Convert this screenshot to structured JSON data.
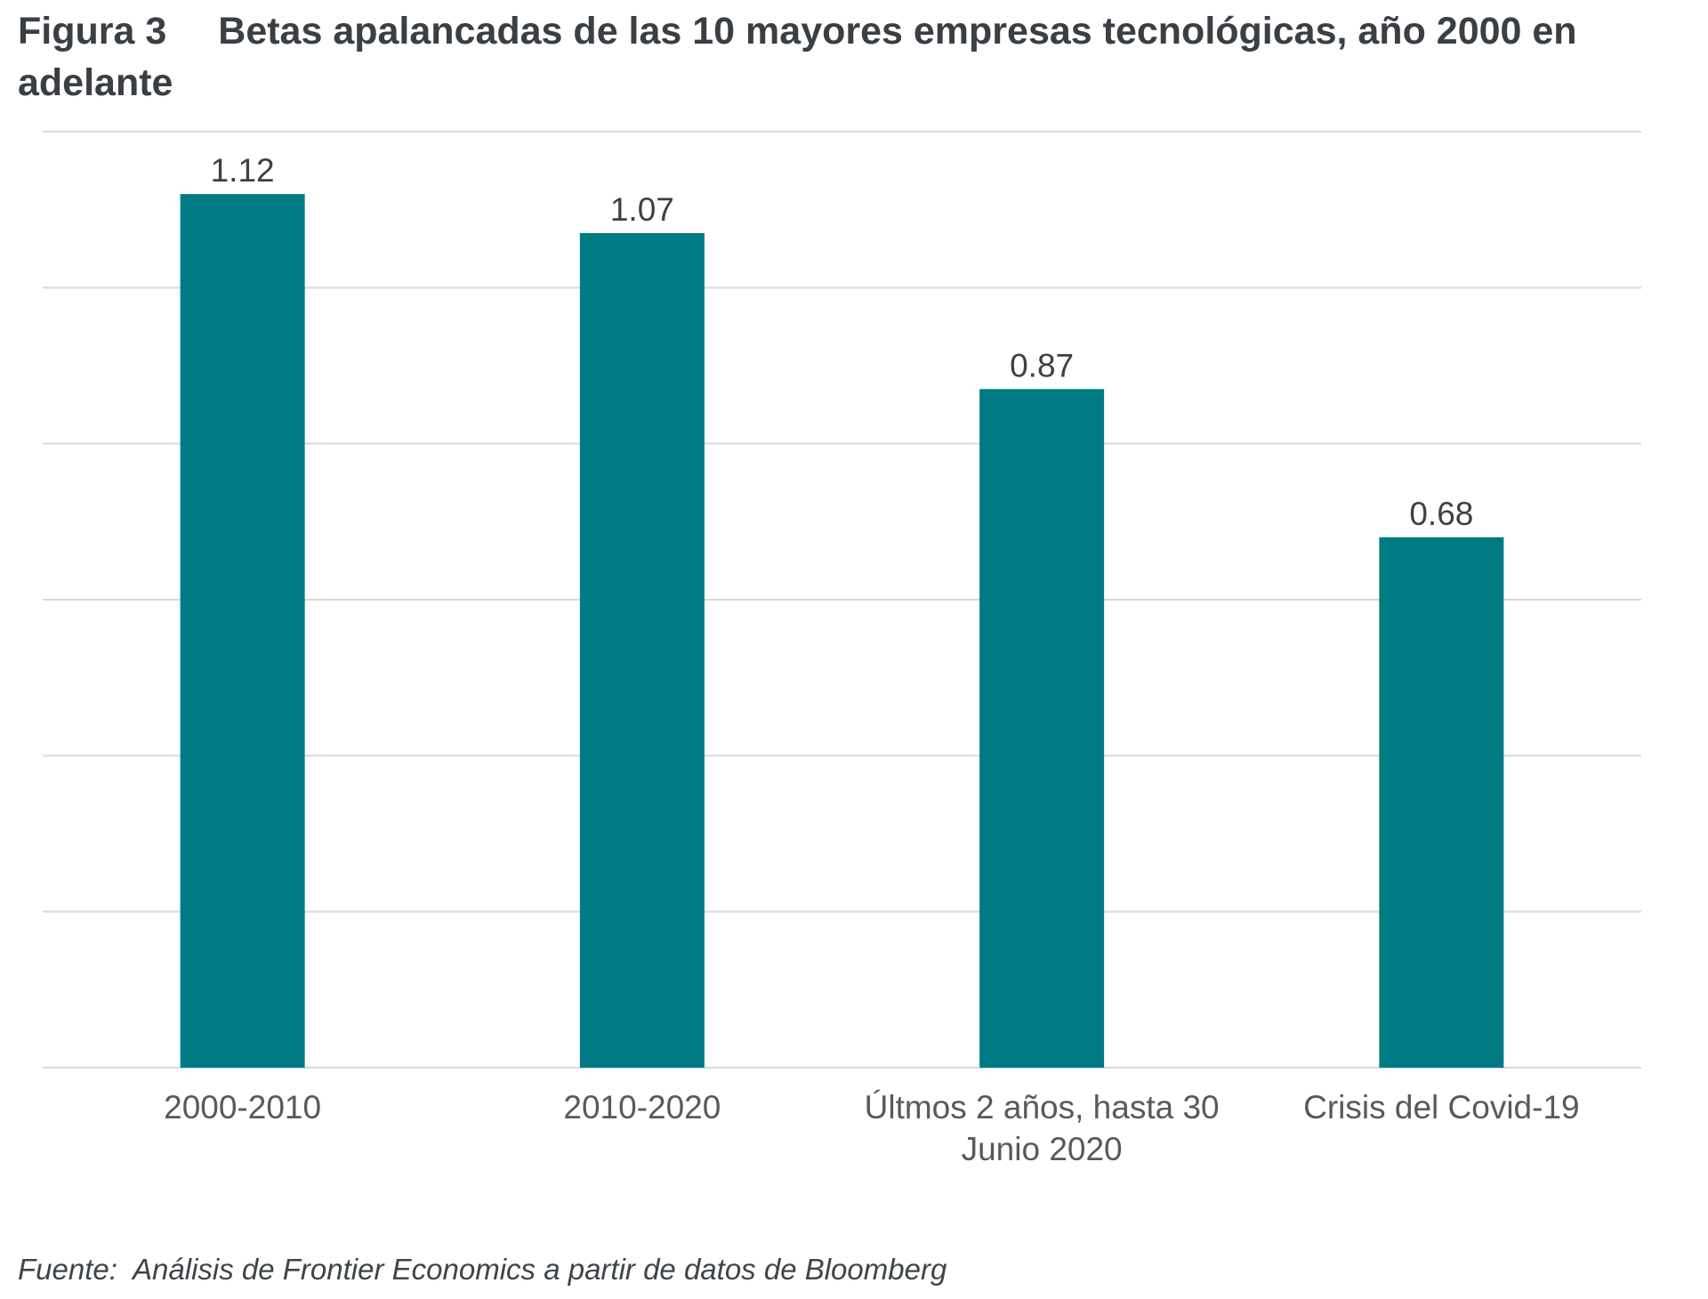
{
  "header": {
    "figure_label": "Figura 3",
    "title": "Betas apalancadas de las 10 mayores empresas tecnológicas, año 2000 en adelante"
  },
  "chart_data": {
    "type": "bar",
    "title": "Betas apalancadas de las 10 mayores empresas tecnológicas, año 2000 en adelante",
    "categories": [
      [
        "2000-2010"
      ],
      [
        "2010-2020"
      ],
      [
        "Últmos 2 años, hasta 30",
        "Junio 2020"
      ],
      [
        "Crisis del Covid-19"
      ]
    ],
    "values": [
      1.12,
      1.07,
      0.87,
      0.68
    ],
    "value_labels": [
      "1.12",
      "1.07",
      "0.87",
      "0.68"
    ],
    "ylim": [
      0,
      1.2
    ],
    "gridlines": [
      0,
      0.2,
      0.4,
      0.6,
      0.8,
      1.0,
      1.2
    ],
    "grid": true,
    "y_axis_labels_shown": false,
    "legend": "none",
    "bar_color": "#007b83"
  },
  "footer": {
    "source": "Fuente:  Análisis de Frontier Economics a partir de datos de Bloomberg"
  }
}
